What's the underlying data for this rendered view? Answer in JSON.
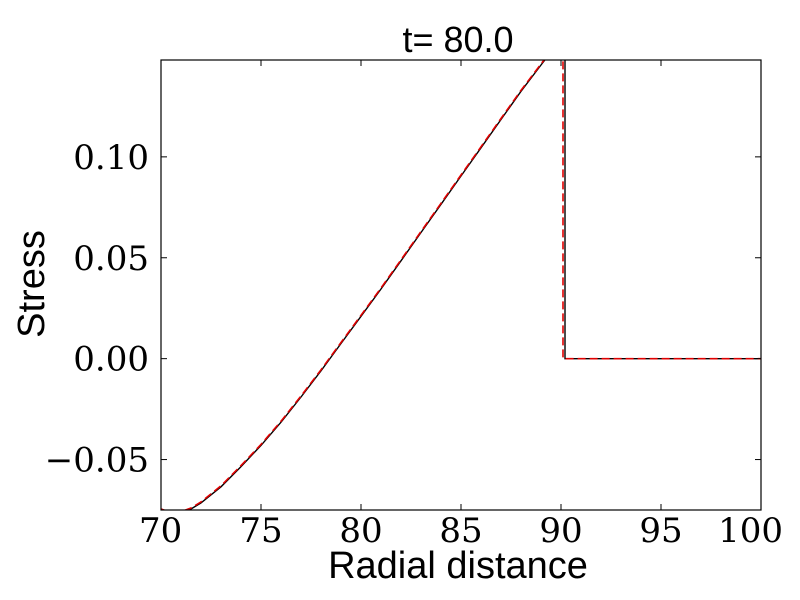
{
  "chart_data": {
    "type": "line",
    "title": "t= 80.0",
    "xlabel": "Radial distance",
    "ylabel": "Stress",
    "xlim": [
      70,
      100
    ],
    "ylim": [
      -0.075,
      0.148
    ],
    "grid": false,
    "x_ticks": [
      {
        "value": 70,
        "label": "70"
      },
      {
        "value": 75,
        "label": "75"
      },
      {
        "value": 80,
        "label": "80"
      },
      {
        "value": 85,
        "label": "85"
      },
      {
        "value": 90,
        "label": "90"
      },
      {
        "value": 95,
        "label": "95"
      },
      {
        "value": 100,
        "label": "100"
      }
    ],
    "y_ticks": [
      {
        "value": -0.05,
        "label": "−0.05"
      },
      {
        "value": 0.0,
        "label": "0.00"
      },
      {
        "value": 0.05,
        "label": "0.05"
      },
      {
        "value": 0.1,
        "label": "0.10"
      }
    ],
    "series": [
      {
        "color": "#000000",
        "style": "solid",
        "x": [
          70,
          70.5,
          71,
          71.5,
          72,
          73,
          74,
          75,
          76,
          77,
          78,
          79,
          80,
          81,
          82,
          83,
          84,
          85,
          86,
          87,
          88,
          89,
          90,
          90.2,
          90.2,
          91,
          92,
          94,
          96,
          98,
          100
        ],
        "y": [
          -0.0745,
          -0.0765,
          -0.0762,
          -0.0745,
          -0.0715,
          -0.0635,
          -0.0535,
          -0.043,
          -0.0315,
          -0.019,
          -0.006,
          0.0075,
          0.021,
          0.0345,
          0.0485,
          0.0625,
          0.0765,
          0.0905,
          0.1045,
          0.1185,
          0.1325,
          0.1455,
          0.1585,
          0.161,
          0.0,
          0.0,
          0.0,
          0.0,
          0.0,
          0.0,
          0.0
        ]
      },
      {
        "color": "#e00000",
        "style": "dashed",
        "x": [
          70,
          70.5,
          71,
          71.5,
          72,
          73,
          74,
          75,
          76,
          77,
          78,
          79,
          80,
          81,
          82,
          83,
          84,
          85,
          86,
          87,
          88,
          89,
          90,
          90.1,
          90.1,
          91,
          92,
          94,
          96,
          98,
          100
        ],
        "y": [
          -0.0745,
          -0.0762,
          -0.0758,
          -0.074,
          -0.071,
          -0.063,
          -0.053,
          -0.0425,
          -0.031,
          -0.0185,
          -0.0055,
          0.008,
          0.0215,
          0.035,
          0.049,
          0.063,
          0.077,
          0.091,
          0.105,
          0.119,
          0.133,
          0.146,
          0.159,
          0.16,
          0.0,
          0.0,
          0.0,
          0.0,
          0.0,
          0.0,
          0.0
        ]
      }
    ]
  }
}
